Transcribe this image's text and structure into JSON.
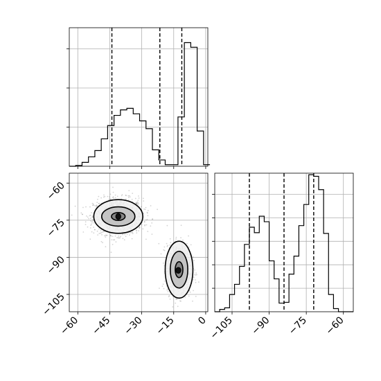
{
  "chart_data": {
    "type": "corner",
    "parameters": [
      "x",
      "y"
    ],
    "grid": true,
    "panels": [
      {
        "id": "hist-x",
        "type": "histogram-step",
        "xlim": [
          -64,
          1
        ],
        "ylim": [
          0,
          17.7
        ],
        "bins_low": [
          -64,
          -61,
          -58,
          -55,
          -52,
          -49,
          -46,
          -43,
          -40,
          -37,
          -34,
          -31,
          -28,
          -25,
          -22,
          -19,
          -16,
          -13,
          -10,
          -7,
          -4,
          -1
        ],
        "bin_width": 3,
        "counts": [
          0,
          0.1,
          0.5,
          1.2,
          2,
          3.5,
          5.2,
          6.5,
          7.2,
          7.4,
          6.7,
          5.8,
          4.8,
          2.1,
          0.8,
          0.2,
          0.2,
          6.3,
          15.8,
          15.2,
          4.5,
          0.2
        ],
        "quantiles": [
          -44,
          -21.5,
          -11.2
        ]
      },
      {
        "id": "scatter-xy",
        "type": "scatter-contour",
        "xlim": [
          -64,
          1
        ],
        "ylim": [
          -112,
          -56
        ],
        "xticks": [
          -60,
          -45,
          -30,
          -15,
          0
        ],
        "yticks": [
          -60,
          -75,
          -90,
          -105
        ],
        "clusters": [
          {
            "center": [
              -41,
              -73.5
            ],
            "sd": [
              5.8,
              3.6
            ],
            "n": 1300
          },
          {
            "center": [
              -12.5,
              -95
            ],
            "sd": [
              2.8,
              5
            ],
            "n": 1100
          }
        ],
        "contours": [
          {
            "center": [
              -41,
              -73.5
            ],
            "radii": [
              [
                3.2,
                1.6
              ],
              [
                7.8,
                3.9
              ],
              [
                11.5,
                6.8
              ]
            ]
          },
          {
            "center": [
              -12.5,
              -95
            ],
            "radii": [
              [
                1.8,
                3.2
              ],
              [
                4.1,
                7.4
              ],
              [
                6.5,
                11.5
              ]
            ]
          }
        ]
      },
      {
        "id": "hist-y",
        "type": "histogram-step",
        "xlim": [
          -112,
          -56
        ],
        "ylim": [
          0,
          17.7
        ],
        "bins_low": [
          -112,
          -110,
          -108,
          -106,
          -104,
          -102,
          -100,
          -98,
          -96,
          -94,
          -92,
          -90,
          -88,
          -86,
          -84,
          -82,
          -80,
          -78,
          -76,
          -74,
          -72,
          -70,
          -68,
          -66,
          -64,
          -62,
          -60,
          -58
        ],
        "bin_width": 2,
        "counts": [
          0,
          0.3,
          0.5,
          2.2,
          3.5,
          5.8,
          8.6,
          10.8,
          10.1,
          12.2,
          11.5,
          6.5,
          4.2,
          1.1,
          1.2,
          4.8,
          7.1,
          11,
          13.7,
          17.5,
          17.3,
          15.6,
          10,
          2.2,
          0.4,
          0,
          0,
          0
        ],
        "quantiles": [
          -98,
          -84,
          -72
        ]
      }
    ],
    "axes": [
      {
        "panel": "hist-x",
        "xticks": [
          -60,
          -45,
          -30,
          -15,
          0
        ],
        "yticks": [
          5,
          10,
          15
        ],
        "show_tick_labels": false
      },
      {
        "panel": "scatter-xy",
        "xtick_labels": [
          "−60",
          "−45",
          "−30",
          "−15",
          "0"
        ],
        "ytick_labels": [
          "−60",
          "−75",
          "−90",
          "−105"
        ]
      },
      {
        "panel": "hist-y",
        "xticks": [
          -105,
          -90,
          -75,
          -60
        ],
        "xtick_labels": [
          "−105",
          "−90",
          "−75",
          "−60"
        ],
        "yticks": [
          3,
          6,
          9,
          12,
          15
        ],
        "show_tick_labels": false
      }
    ],
    "colors": {
      "line": "#000000",
      "grid": "#b0b0b0",
      "points": "#808080",
      "fill_levels": [
        "#f0f0f0",
        "#bdbdbd",
        "#7a7a7a",
        "#111111"
      ]
    }
  }
}
